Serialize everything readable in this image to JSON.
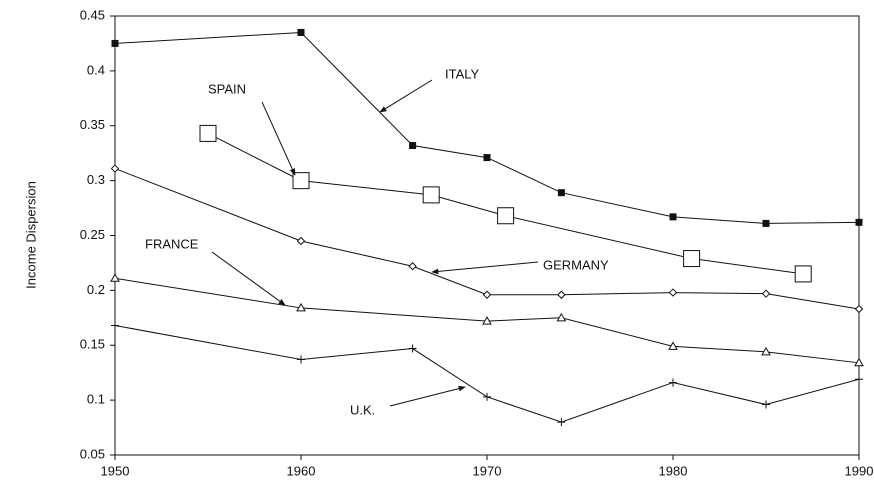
{
  "chart_data": {
    "type": "line",
    "y_label": "Income Dispersion",
    "xlim": [
      1950,
      1990
    ],
    "xticks": [
      1950,
      1960,
      1970,
      1980,
      1990
    ],
    "ylim": [
      0.05,
      0.45
    ],
    "yticks": [
      0.05,
      0.1,
      0.15,
      0.2,
      0.25,
      0.3,
      0.35,
      0.4,
      0.45
    ],
    "grid": false,
    "series": [
      {
        "name": "ITALY",
        "color": "#111111",
        "marker": "filled-square",
        "x": [
          1950,
          1960,
          1966,
          1970,
          1974,
          1980,
          1985,
          1990
        ],
        "values": [
          0.425,
          0.435,
          0.332,
          0.321,
          0.289,
          0.267,
          0.261,
          0.262
        ]
      },
      {
        "name": "SPAIN",
        "color": "#111111",
        "marker": "open-square",
        "x": [
          1955,
          1960,
          1967,
          1971,
          1981,
          1987
        ],
        "values": [
          0.343,
          0.3,
          0.287,
          0.268,
          0.229,
          0.215
        ]
      },
      {
        "name": "GERMANY",
        "color": "#111111",
        "marker": "diamond",
        "x": [
          1950,
          1960,
          1966,
          1970,
          1974,
          1980,
          1985,
          1990
        ],
        "values": [
          0.311,
          0.245,
          0.222,
          0.196,
          0.196,
          0.198,
          0.197,
          0.183
        ]
      },
      {
        "name": "FRANCE",
        "color": "#111111",
        "marker": "triangle",
        "x": [
          1950,
          1960,
          1970,
          1974,
          1980,
          1985,
          1990
        ],
        "values": [
          0.211,
          0.184,
          0.172,
          0.175,
          0.149,
          0.144,
          0.134
        ]
      },
      {
        "name": "U.K.",
        "color": "#111111",
        "marker": "plus",
        "x": [
          1950,
          1960,
          1966,
          1970,
          1974,
          1980,
          1985,
          1990
        ],
        "values": [
          0.168,
          0.137,
          0.147,
          0.103,
          0.08,
          0.116,
          0.096,
          0.119
        ]
      }
    ]
  }
}
